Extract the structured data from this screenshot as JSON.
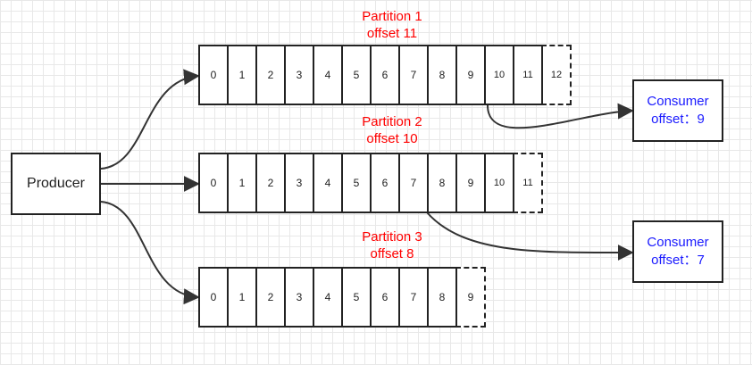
{
  "producer": {
    "label": "Producer"
  },
  "partitions": [
    {
      "title": "Partition 1",
      "offset_label": "offset 11",
      "cells": [
        "0",
        "1",
        "2",
        "3",
        "4",
        "5",
        "6",
        "7",
        "8",
        "9",
        "10",
        "11",
        "12"
      ]
    },
    {
      "title": "Partition 2",
      "offset_label": "offset 10",
      "cells": [
        "0",
        "1",
        "2",
        "3",
        "4",
        "5",
        "6",
        "7",
        "8",
        "9",
        "10",
        "11"
      ]
    },
    {
      "title": "Partition 3",
      "offset_label": "offset 8",
      "cells": [
        "0",
        "1",
        "2",
        "3",
        "4",
        "5",
        "6",
        "7",
        "8",
        "9"
      ]
    }
  ],
  "consumers": [
    {
      "label": "Consumer",
      "offset_label": "offset：9"
    },
    {
      "label": "Consumer",
      "offset_label": "offset：7"
    }
  ],
  "colors": {
    "partition_title": "#ff0000",
    "consumer_text": "#1a1aff",
    "line": "#333333"
  }
}
